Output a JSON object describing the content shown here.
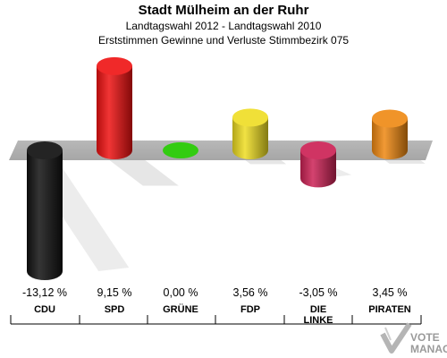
{
  "header": {
    "title": "Stadt Mülheim an der Ruhr",
    "subtitle1": "Landtagswahl 2012 - Landtagswahl 2010",
    "subtitle2": "Erststimmen Gewinne und Verluste Stimmbezirk 075"
  },
  "watermark": {
    "line1": "VOTE",
    "line2": "MANAGER"
  },
  "chart_data": {
    "type": "bar",
    "title": "Stadt Mülheim an der Ruhr",
    "subtitle": "Landtagswahl 2012 - Landtagswahl 2010 · Erststimmen Gewinne und Verluste Stimmbezirk 075",
    "categories": [
      "CDU",
      "SPD",
      "GRÜNE",
      "FDP",
      "DIE LINKE",
      "PIRATEN"
    ],
    "category_lines": [
      [
        "CDU"
      ],
      [
        "SPD"
      ],
      [
        "GRÜNE"
      ],
      [
        "FDP"
      ],
      [
        "DIE",
        "LINKE"
      ],
      [
        "PIRATEN"
      ]
    ],
    "values": [
      -13.12,
      9.15,
      0.0,
      3.56,
      -3.05,
      3.45
    ],
    "value_labels": [
      "-13,12 %",
      "9,15 %",
      "0,00 %",
      "3,56 %",
      "-3,05 %",
      "3,45 %"
    ],
    "colors": [
      "#111111",
      "#ee1111",
      "#33cc11",
      "#eedd22",
      "#cc2255",
      "#ee8811"
    ],
    "ylim": [
      -13.12,
      9.15
    ]
  }
}
